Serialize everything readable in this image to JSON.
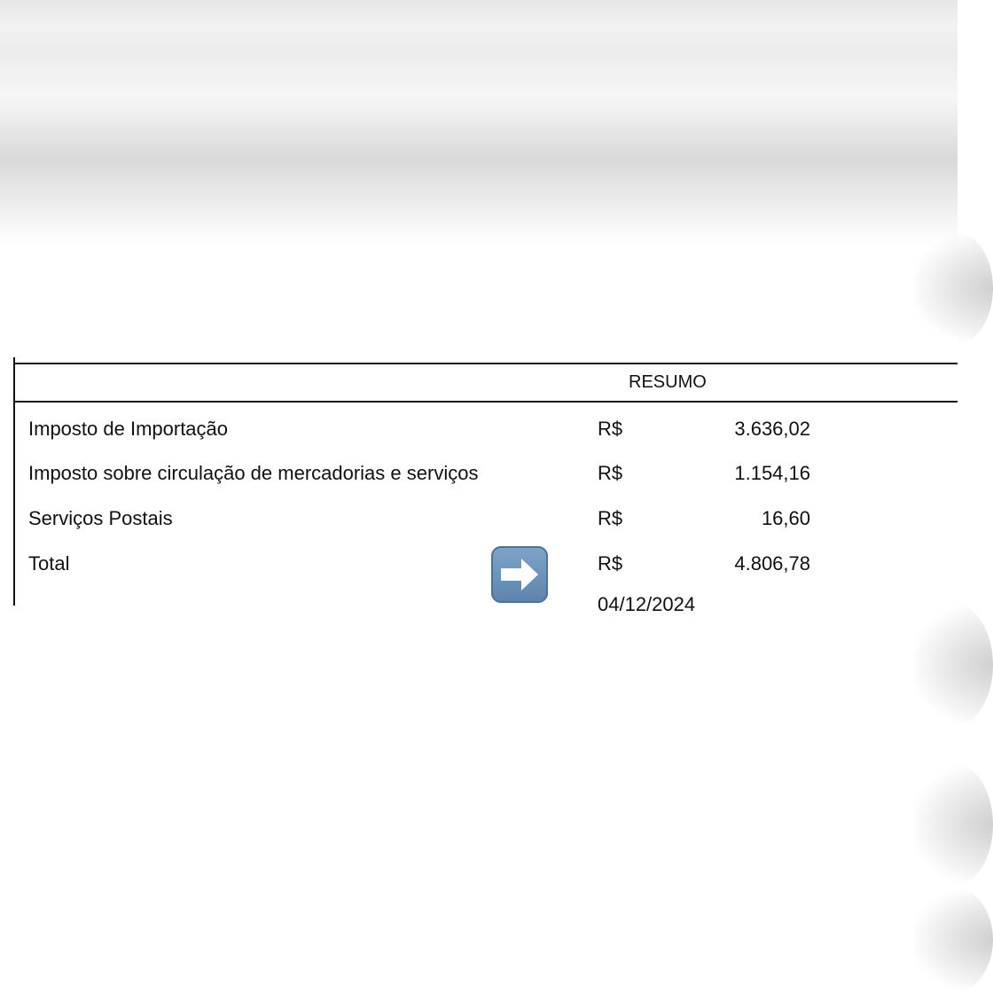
{
  "resumo": {
    "title": "RESUMO",
    "rows": [
      {
        "label": "Imposto de Importação",
        "currency": "R$",
        "value": "3.636,02"
      },
      {
        "label": "Imposto sobre circulação de mercadorias e serviços",
        "currency": "R$",
        "value": "1.154,16"
      },
      {
        "label": "Serviços Postais",
        "currency": "R$",
        "value": "16,60"
      },
      {
        "label": "Total",
        "currency": "R$",
        "value": "4.806,78"
      }
    ],
    "date_partial": "04/12/2024"
  },
  "icons": {
    "total_pointer": "right-arrow-emoji"
  },
  "colors": {
    "arrow_bg": "#6a93bd"
  }
}
